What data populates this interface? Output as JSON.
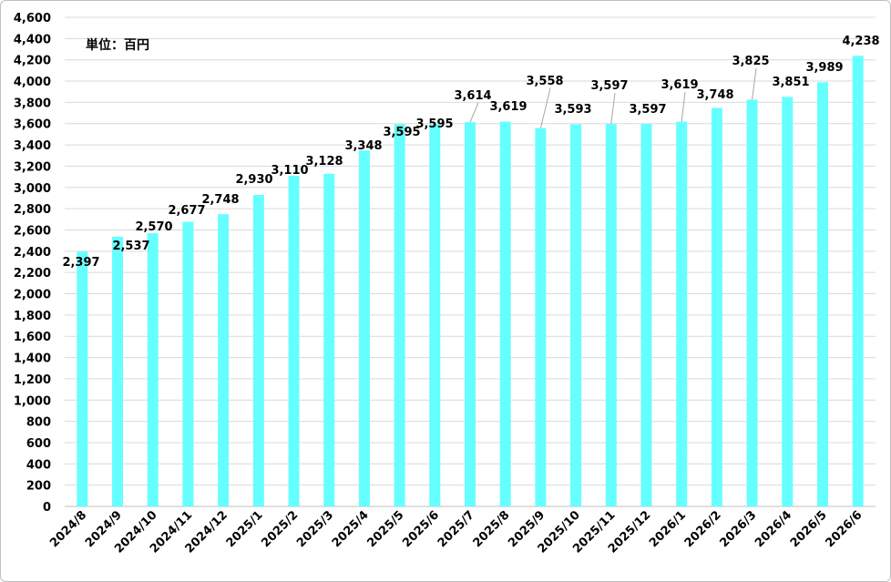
{
  "chart_data": {
    "type": "bar",
    "unit_label": "単位：百円",
    "categories": [
      "2024/8",
      "2024/9",
      "2024/10",
      "2024/11",
      "2024/12",
      "2025/1",
      "2025/2",
      "2025/3",
      "2025/4",
      "2025/5",
      "2025/6",
      "2025/7",
      "2025/8",
      "2025/9",
      "2025/10",
      "2025/11",
      "2025/12",
      "2026/1",
      "2026/2",
      "2026/3",
      "2026/4",
      "2026/5",
      "2026/6"
    ],
    "values": [
      2397,
      2537,
      2570,
      2677,
      2748,
      2930,
      3110,
      3128,
      3348,
      3595,
      3595,
      3614,
      3619,
      3558,
      3593,
      3597,
      3597,
      3619,
      3748,
      3825,
      3851,
      3989,
      4238
    ],
    "data_labels": [
      "2,397",
      "2,537",
      "2,570",
      "2,677",
      "2,748",
      "2,930",
      "3,110",
      "3,128",
      "3,348",
      "3,595",
      "3,595",
      "3,614",
      "3,619",
      "3,558",
      "3,593",
      "3,597",
      "3,597",
      "3,619",
      "3,748",
      "3,825",
      "3,851",
      "3,989",
      "4,238"
    ],
    "ylim": [
      0,
      4600
    ],
    "y_ticks": [
      0,
      200,
      400,
      600,
      800,
      1000,
      1200,
      1400,
      1600,
      1800,
      2000,
      2200,
      2400,
      2600,
      2800,
      3000,
      3200,
      3400,
      3600,
      3800,
      4000,
      4200,
      4400,
      4600
    ],
    "y_tick_labels": [
      "0",
      "200",
      "400",
      "600",
      "800",
      "1,000",
      "1,200",
      "1,400",
      "1,600",
      "1,800",
      "2,000",
      "2,200",
      "2,400",
      "2,600",
      "2,800",
      "3,000",
      "3,200",
      "3,400",
      "3,600",
      "3,800",
      "4,000",
      "4,200",
      "4,400",
      "4,600"
    ],
    "grid": true,
    "bar_color": "#66ffff",
    "grid_color": "#d9d9d9",
    "leader_color": "#a6a6a6"
  }
}
